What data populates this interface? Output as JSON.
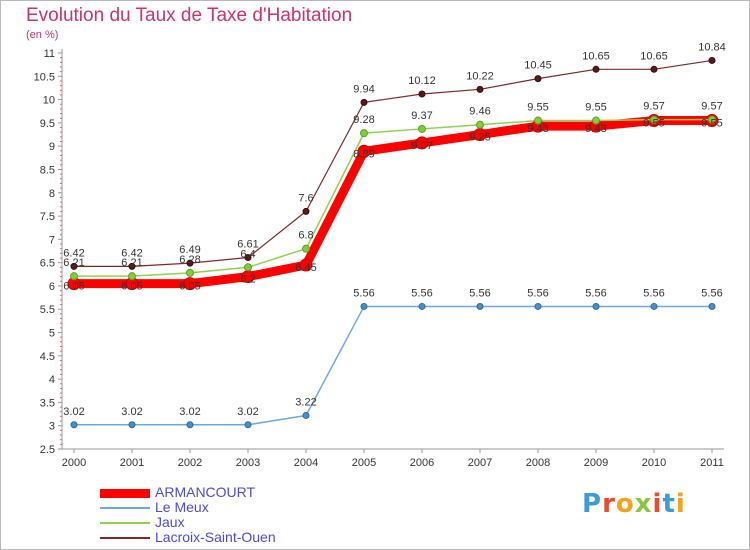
{
  "title": "Evolution du Taux de Taxe d'Habitation",
  "subtitle": "(en %)",
  "logo": {
    "text": "Proxiti",
    "letters": [
      {
        "ch": "P",
        "color": "#3d9bd9"
      },
      {
        "ch": "r",
        "color": "#e94b2c"
      },
      {
        "ch": "o",
        "color": "#f7a21b"
      },
      {
        "ch": "x",
        "color": "#8cc43f"
      },
      {
        "ch": "i",
        "color": "#e94b2c"
      },
      {
        "ch": "t",
        "color": "#3d9bd9"
      },
      {
        "ch": "i",
        "color": "#f7a21b"
      }
    ]
  },
  "chart_data": {
    "type": "line",
    "x": [
      "2000",
      "2001",
      "2002",
      "2003",
      "2004",
      "2005",
      "2006",
      "2007",
      "2008",
      "2009",
      "2010",
      "2011"
    ],
    "ylim": [
      2.5,
      11
    ],
    "yticks": [
      "2.5",
      "3",
      "3.5",
      "4",
      "4.5",
      "5",
      "5.5",
      "6",
      "6.5",
      "7",
      "7.5",
      "8",
      "8.5",
      "9",
      "9.5",
      "10",
      "10.5",
      "11"
    ],
    "grid": false,
    "legend_position": "bottom-left",
    "series": [
      {
        "name": "ARMANCOURT",
        "color": "#ff0000",
        "values": [
          6.05,
          6.05,
          6.05,
          6.2,
          6.45,
          8.89,
          9.07,
          9.25,
          9.43,
          9.43,
          9.55,
          9.55
        ],
        "labels": [
          "6.05",
          "6.05",
          "6.05",
          "6.2",
          "6.45",
          "8.89",
          "9.07",
          "9.25",
          "9.43",
          "9.43",
          "9.55",
          "9.55"
        ]
      },
      {
        "name": "Le Meux",
        "color": "#6fa8dc",
        "values": [
          3.02,
          3.02,
          3.02,
          3.02,
          3.22,
          5.56,
          5.56,
          5.56,
          5.56,
          5.56,
          5.56,
          5.56
        ],
        "labels": [
          "3.02",
          "3.02",
          "3.02",
          "3.02",
          "3.22",
          "5.56",
          "5.56",
          "5.56",
          "5.56",
          "5.56",
          "5.56",
          "5.56"
        ]
      },
      {
        "name": "Jaux",
        "color": "#8fd14f",
        "values": [
          6.21,
          6.21,
          6.28,
          6.4,
          6.8,
          9.28,
          9.37,
          9.46,
          9.55,
          9.55,
          9.57,
          9.57
        ],
        "labels": [
          "6.21",
          "6.21",
          "6.28",
          "6.4",
          "6.8",
          "9.28",
          "9.37",
          "9.46",
          "9.55",
          "9.55",
          "9.57",
          "9.57"
        ]
      },
      {
        "name": "Lacroix-Saint-Ouen",
        "color": "#7a2a2a",
        "values": [
          6.42,
          6.42,
          6.49,
          6.61,
          7.6,
          9.94,
          10.12,
          10.22,
          10.45,
          10.65,
          10.65,
          10.84
        ],
        "labels": [
          "6.42",
          "6.42",
          "6.49",
          "6.61",
          "7.6",
          "9.94",
          "10.12",
          "10.22",
          "10.45",
          "10.65",
          "10.65",
          "10.84"
        ]
      }
    ]
  }
}
